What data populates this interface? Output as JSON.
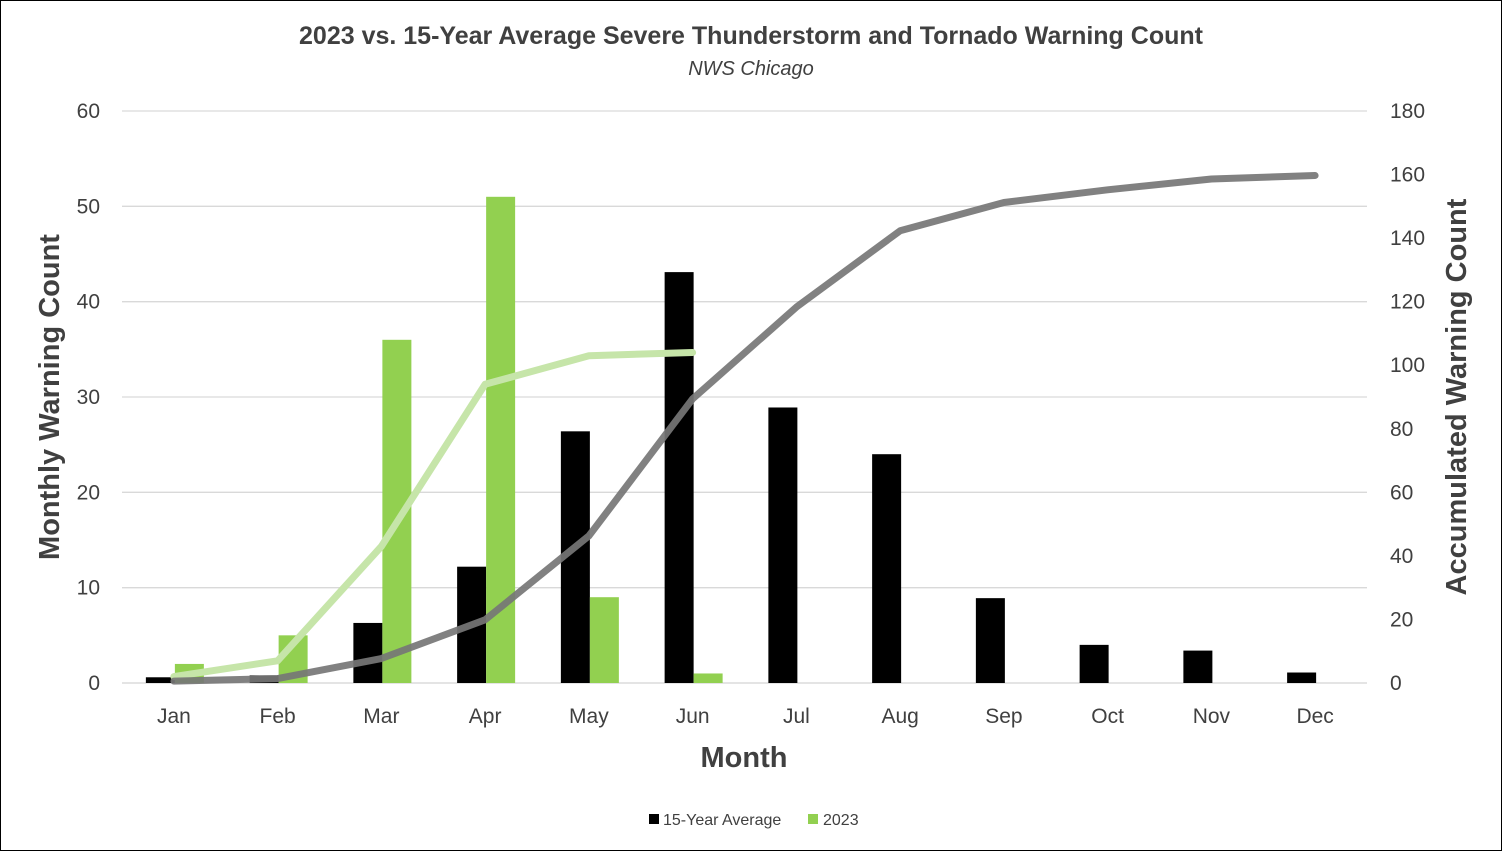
{
  "chart_data": {
    "type": "bar",
    "title": "2023 vs. 15-Year Average Severe Thunderstorm and Tornado Warning Count",
    "subtitle": "NWS Chicago",
    "xlabel": "Month",
    "ylabel_left": "Monthly Warning Count",
    "ylabel_right": "Accumulated Warning Count",
    "categories": [
      "Jan",
      "Feb",
      "Mar",
      "Apr",
      "May",
      "Jun",
      "Jul",
      "Aug",
      "Sep",
      "Oct",
      "Nov",
      "Dec"
    ],
    "ylim_left": [
      0,
      60
    ],
    "yticks_left": [
      0,
      10,
      20,
      30,
      40,
      50,
      60
    ],
    "ylim_right": [
      0,
      180
    ],
    "yticks_right": [
      0,
      20,
      40,
      60,
      80,
      100,
      120,
      140,
      160,
      180
    ],
    "grid": true,
    "legend_position": "bottom",
    "series": [
      {
        "name": "15-Year Average",
        "kind": "bar",
        "axis": "left",
        "color": "#000000",
        "values": [
          0.6,
          0.8,
          6.3,
          12.2,
          26.4,
          43.1,
          28.9,
          24.0,
          8.9,
          4.0,
          3.4,
          1.1
        ]
      },
      {
        "name": "2023",
        "kind": "bar",
        "axis": "left",
        "color": "#92d050",
        "values": [
          2,
          5,
          36,
          51,
          9,
          1,
          null,
          null,
          null,
          null,
          null,
          null
        ]
      },
      {
        "kind": "line",
        "axis": "right",
        "color": "#767676",
        "values": [
          0.6,
          1.4,
          7.7,
          19.9,
          46.3,
          89.4,
          118.3,
          142.3,
          151.2,
          155.2,
          158.6,
          159.7
        ]
      },
      {
        "kind": "line",
        "axis": "right",
        "color": "#c6e5a9",
        "values": [
          2,
          7,
          43,
          94,
          103,
          104,
          null,
          null,
          null,
          null,
          null,
          null
        ]
      }
    ]
  }
}
